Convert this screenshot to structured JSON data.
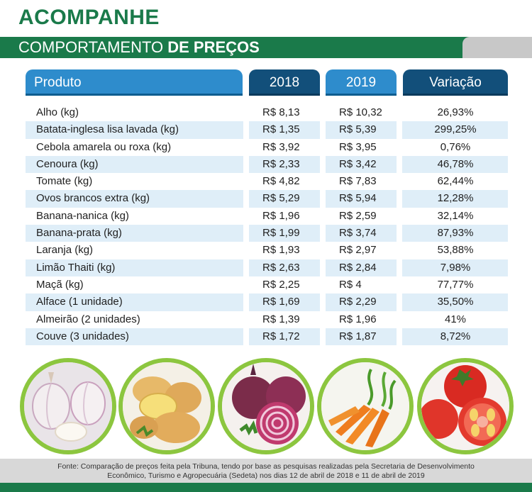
{
  "kicker": "ACOMPANHE",
  "title": {
    "light": "COMPORTAMENTO ",
    "bold": "DE PREÇOS"
  },
  "colors": {
    "green": "#1a7a4a",
    "light_blue": "#2e8ccc",
    "dark_blue": "#124f7a",
    "lime": "#8cc63f",
    "row_alt": "#dfeef8"
  },
  "table": {
    "headers": [
      "Produto",
      "2018",
      "2019",
      "Variação"
    ],
    "rows": [
      [
        "Alho (kg)",
        "R$ 8,13",
        "R$ 10,32",
        "26,93%"
      ],
      [
        "Batata-inglesa lisa lavada (kg)",
        "R$ 1,35",
        "R$ 5,39",
        "299,25%"
      ],
      [
        "Cebola amarela ou roxa (kg)",
        "R$ 3,92",
        "R$ 3,95",
        "0,76%"
      ],
      [
        "Cenoura (kg)",
        "R$ 2,33",
        "R$ 3,42",
        "46,78%"
      ],
      [
        "Tomate (kg)",
        "R$ 4,82",
        "R$ 7,83",
        "62,44%"
      ],
      [
        "Ovos brancos extra (kg)",
        "R$ 5,29",
        "R$ 5,94",
        "12,28%"
      ],
      [
        "Banana-nanica (kg)",
        "R$ 1,96",
        "R$ 2,59",
        "32,14%"
      ],
      [
        "Banana-prata (kg)",
        "R$ 1,99",
        "R$ 3,74",
        "87,93%"
      ],
      [
        "Laranja (kg)",
        "R$ 1,93",
        "R$ 2,97",
        "53,88%"
      ],
      [
        "Limão Thaiti (kg)",
        "R$ 2,63",
        "R$ 2,84",
        "7,98%"
      ],
      [
        "Maçã (kg)",
        "R$ 2,25",
        "R$ 4",
        "77,77%"
      ],
      [
        "Alface (1 unidade)",
        "R$ 1,69",
        "R$ 2,29",
        "35,50%"
      ],
      [
        "Almeirão (2 unidades)",
        "R$ 1,39",
        "R$ 1,96",
        "41%"
      ],
      [
        "Couve (3 unidades)",
        "R$ 1,72",
        "R$ 1,87",
        "8,72%"
      ]
    ]
  },
  "photos": [
    "garlic-photo",
    "potato-photo",
    "onion-photo",
    "carrot-photo",
    "tomato-photo"
  ],
  "footer": {
    "line1": "Fonte: Comparação de preços feita pela Tribuna, tendo por base as pesquisas realizadas pela Secretaria de Desenvolvimento",
    "line2": "Econômico, Turismo e Agropecuária (Sedeta) nos dias 12 de abril de 2018 e 11 de abril de 2019"
  }
}
